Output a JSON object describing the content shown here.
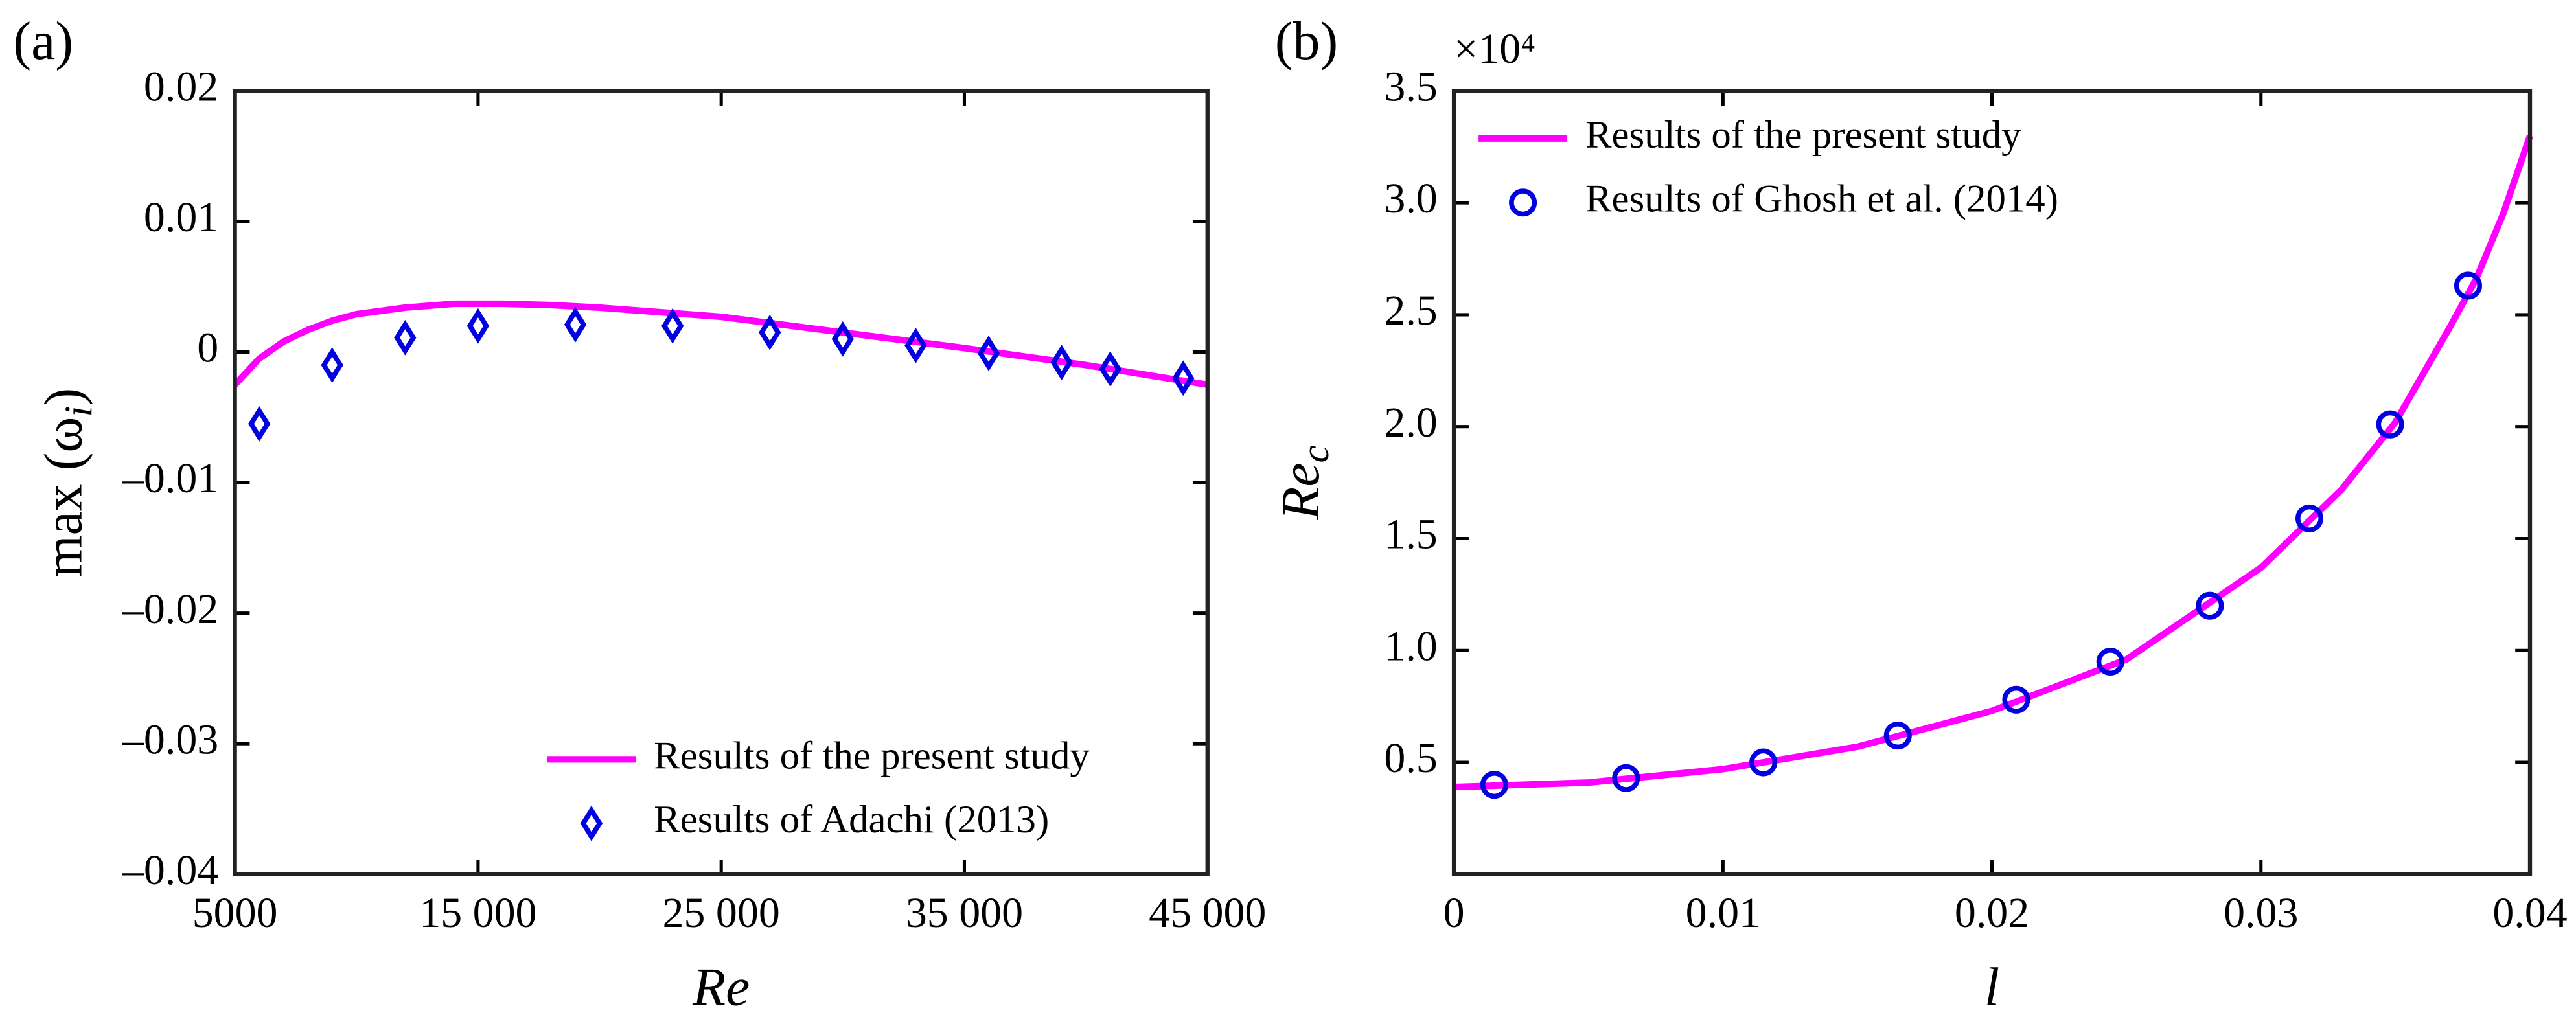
{
  "chart_data": [
    {
      "type": "line",
      "title": "(a)",
      "xlabel": "Re",
      "ylabel": "max (ω",
      "ylabel_sub": "i",
      "ylabel_end": ")",
      "xlim": [
        5000,
        45000
      ],
      "xticks": [
        5000,
        {
          "value": 15000,
          "label": "15 000"
        },
        {
          "value": 25000,
          "label": "25 000"
        },
        {
          "value": 35000,
          "label": "35 000"
        },
        {
          "value": 45000,
          "label": "45 000"
        }
      ],
      "ylim": [
        -0.04,
        0.02
      ],
      "yticks": [
        {
          "value": -0.04,
          "label": "–0.04"
        },
        {
          "value": -0.03,
          "label": "–0.03"
        },
        {
          "value": -0.02,
          "label": "–0.02"
        },
        {
          "value": -0.01,
          "label": "–0.01"
        },
        0,
        0.01,
        0.02
      ],
      "legend": "lower right",
      "series": [
        {
          "name": "Results of the present study",
          "color": "#ff00ff",
          "marker": "none",
          "x": [
            5000,
            6000,
            7000,
            8000,
            9000,
            10000,
            12000,
            14000,
            16000,
            18000,
            20000,
            25000,
            30000,
            35000,
            40000,
            45000
          ],
          "values": [
            -0.0025,
            -0.0005,
            0.0008,
            0.0017,
            0.0024,
            0.0029,
            0.0034,
            0.0037,
            0.0037,
            0.0036,
            0.0034,
            0.0027,
            0.0015,
            0.0003,
            -0.001,
            -0.0025
          ]
        },
        {
          "name": "Results of Adachi (2013)",
          "color": "#0000e0",
          "marker": "diamond",
          "x": [
            6000,
            9000,
            12000,
            15000,
            19000,
            23000,
            27000,
            30000,
            33000,
            36000,
            39000,
            41000,
            44000
          ],
          "values": [
            -0.0055,
            -0.001,
            0.0011,
            0.002,
            0.0021,
            0.002,
            0.0015,
            0.001,
            0.0005,
            -0.0001,
            -0.0008,
            -0.0013,
            -0.002
          ]
        }
      ]
    },
    {
      "type": "line",
      "title": "(b)",
      "xlabel": "l",
      "ylabel": "Re",
      "ylabel_sub": "c",
      "yscale_label": "×10⁴",
      "xlim": [
        0,
        0.04
      ],
      "xticks": [
        0,
        0.01,
        0.02,
        0.03,
        0.04
      ],
      "ylim": [
        0,
        3.5
      ],
      "yticks": [
        0.5,
        {
          "value": 1,
          "label": "1.0"
        },
        1.5,
        {
          "value": 2,
          "label": "2.0"
        },
        2.5,
        {
          "value": 3,
          "label": "3.0"
        },
        3.5
      ],
      "legend": "upper left",
      "series": [
        {
          "name": "Results of the present study",
          "color": "#ff00ff",
          "marker": "none",
          "x": [
            0,
            0.005,
            0.01,
            0.015,
            0.02,
            0.025,
            0.03,
            0.033,
            0.035,
            0.037,
            0.038,
            0.039,
            0.04
          ],
          "values": [
            0.39,
            0.41,
            0.47,
            0.57,
            0.73,
            0.96,
            1.37,
            1.72,
            2.02,
            2.44,
            2.66,
            2.95,
            3.3
          ]
        },
        {
          "name": "Results of Ghosh et al. (2014)",
          "color": "#0000e0",
          "marker": "circle",
          "x": [
            0.0015,
            0.0064,
            0.0115,
            0.0165,
            0.0209,
            0.0244,
            0.0281,
            0.0318,
            0.0348,
            0.0377
          ],
          "values": [
            0.4,
            0.43,
            0.5,
            0.62,
            0.78,
            0.95,
            1.2,
            1.59,
            2.01,
            2.63
          ]
        }
      ]
    }
  ]
}
